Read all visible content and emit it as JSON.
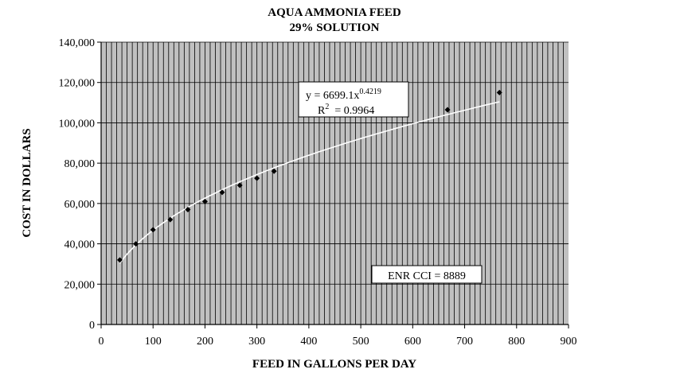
{
  "chart_data": {
    "type": "scatter",
    "title": [
      "AQUA AMMONIA FEED",
      "29% SOLUTION"
    ],
    "xlabel": "FEED IN GALLONS PER DAY",
    "ylabel": "COST IN DOLLARS",
    "xlim": [
      0,
      900
    ],
    "ylim": [
      0,
      140000
    ],
    "xticks": [
      0,
      100,
      200,
      300,
      400,
      500,
      600,
      700,
      800,
      900
    ],
    "yticks": [
      0,
      20000,
      40000,
      60000,
      80000,
      100000,
      120000,
      140000
    ],
    "xtick_labels": [
      "0",
      "100",
      "200",
      "300",
      "400",
      "500",
      "600",
      "700",
      "800",
      "900"
    ],
    "ytick_labels": [
      "0",
      "20,000",
      "40,000",
      "60,000",
      "80,000",
      "100,000",
      "120,000",
      "140,000"
    ],
    "grid": true,
    "background": "#c0c0c0",
    "series": [
      {
        "marker": "diamond",
        "color": "#000000",
        "x": [
          36,
          67,
          100,
          133,
          167,
          200,
          233,
          267,
          300,
          333,
          667,
          767
        ],
        "y": [
          32000,
          40000,
          47000,
          52000,
          57000,
          61000,
          65500,
          69000,
          72500,
          76000,
          106500,
          115000
        ]
      }
    ],
    "trendline": {
      "type": "power",
      "a": 6699.1,
      "b": 0.4219,
      "x_range": [
        36,
        767
      ],
      "color": "#ffffff"
    },
    "annotations": {
      "equation_prefix": "y = 6699.1x",
      "equation_exponent": "0.4219",
      "r2_prefix": "R",
      "r2_superscript": "2",
      "r2_suffix": "  = 0.9964",
      "enr_label": "ENR CCI = 8889"
    }
  }
}
